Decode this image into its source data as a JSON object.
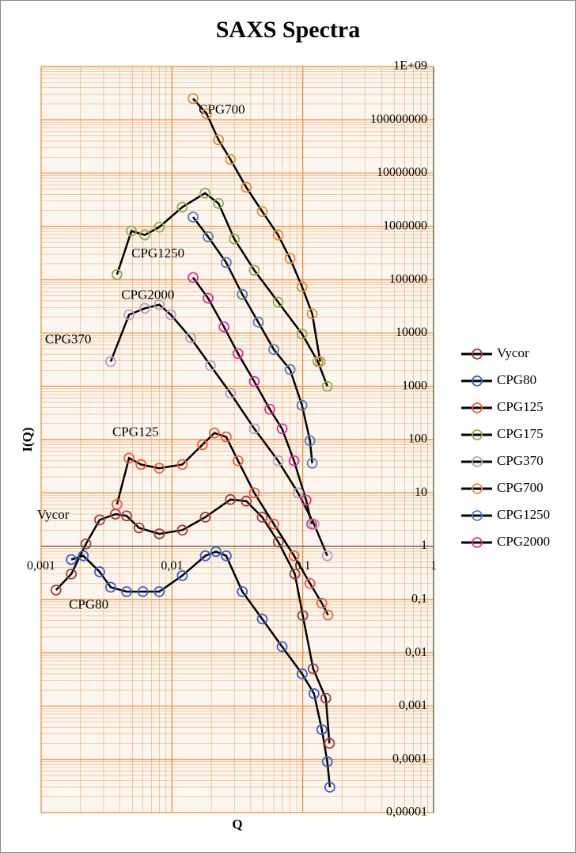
{
  "chart_data": {
    "type": "scatter-line",
    "title": "SAXS Spectra",
    "x_label": "Q",
    "y_label": "I(Q)",
    "xscale": "log",
    "yscale": "log",
    "xlim": [
      0.001,
      1
    ],
    "ylim": [
      1e-05,
      1000000000
    ],
    "xticks": [
      {
        "value": 0.001,
        "label": "0,001"
      },
      {
        "value": 0.01,
        "label": "0,01"
      },
      {
        "value": 0.1,
        "label": "0,1"
      },
      1
    ],
    "yticks": [
      {
        "value": 1000000000,
        "label": "1E+09"
      },
      100000000,
      10000000,
      1000000,
      100000,
      10000,
      1000,
      100,
      10,
      1,
      {
        "value": 0.1,
        "label": "0,1"
      },
      {
        "value": 0.01,
        "label": "0,01"
      },
      {
        "value": 0.001,
        "label": "0,001"
      },
      {
        "value": 0.0001,
        "label": "0,0001"
      },
      {
        "value": 1e-05,
        "label": "0,00001"
      }
    ],
    "grid": true,
    "minor_grid": true,
    "grid_color": "#e38a2e",
    "line_color": "#000000",
    "legend": "right",
    "series": [
      {
        "name": "Vycor",
        "color": "#a0403c",
        "x": [
          0.0013,
          0.0017,
          0.0022,
          0.0028,
          0.0037,
          0.0045,
          0.0056,
          0.008,
          0.012,
          0.018,
          0.028,
          0.037,
          0.049,
          0.065,
          0.087,
          0.1,
          0.12,
          0.15,
          0.16
        ],
        "values": [
          0.15,
          0.3,
          1.1,
          3.1,
          4,
          3.7,
          2.2,
          1.7,
          2,
          3.5,
          7.5,
          7,
          3.5,
          1.2,
          0.3,
          0.05,
          0.005,
          0.0014,
          0.0002
        ]
      },
      {
        "name": "CPG80",
        "color": "#3a5fcf",
        "x": [
          0.0017,
          0.0021,
          0.0028,
          0.0034,
          0.0045,
          0.006,
          0.008,
          0.012,
          0.018,
          0.0217,
          0.026,
          0.0345,
          0.049,
          0.0695,
          0.099,
          0.122,
          0.14,
          0.154,
          0.161
        ],
        "values": [
          0.56,
          0.66,
          0.33,
          0.17,
          0.14,
          0.14,
          0.14,
          0.28,
          0.66,
          0.79,
          0.66,
          0.14,
          0.043,
          0.013,
          0.004,
          0.0017,
          0.00036,
          9e-05,
          3e-05
        ]
      },
      {
        "name": "CPG125",
        "color": "#f0603a",
        "x": [
          0.0038,
          0.0047,
          0.0058,
          0.008,
          0.012,
          0.0171,
          0.0211,
          0.026,
          0.032,
          0.0426,
          0.06,
          0.0857,
          0.1135,
          0.14,
          0.156
        ],
        "values": [
          6.1,
          45,
          34,
          29,
          34,
          80,
          133,
          112,
          40,
          10,
          2.6,
          0.66,
          0.2,
          0.085,
          0.051
        ]
      },
      {
        "name": "CPG175",
        "color": "#8fb050",
        "x": [
          0.0038,
          0.0049,
          0.0062,
          0.008,
          0.012,
          0.0179,
          0.0227,
          0.03,
          0.0426,
          0.0648,
          0.0987,
          0.1305,
          0.154
        ],
        "values": [
          125000,
          820000,
          690000,
          970000,
          2300000,
          4200000,
          2700000,
          580000,
          150000,
          38000,
          9600,
          2900,
          1000
        ]
      },
      {
        "name": "CPG370",
        "color": "#b3a2c7",
        "x": [
          0.0034,
          0.0047,
          0.0062,
          0.008,
          0.0098,
          0.0139,
          0.0197,
          0.028,
          0.0426,
          0.0648,
          0.092,
          0.122,
          0.154
        ],
        "values": [
          2900,
          22000,
          29000,
          34000,
          22000,
          8100,
          2450,
          740,
          160,
          40,
          10,
          2.6,
          0.66
        ]
      },
      {
        "name": "CPG700",
        "color": "#e0903a",
        "x": [
          0.0145,
          0.0184,
          0.0227,
          0.028,
          0.037,
          0.049,
          0.0648,
          0.08,
          0.0987,
          0.118,
          0.136
        ],
        "values": [
          250000000,
          130000000,
          42000000,
          18000000,
          5400000,
          1900000,
          690000,
          250000,
          74000,
          23000,
          2900
        ]
      },
      {
        "name": "CPG1250",
        "color": "#4f81bd",
        "x": [
          0.0145,
          0.0189,
          0.026,
          0.0345,
          0.0457,
          0.06,
          0.08,
          0.0987,
          0.1135,
          0.118
        ],
        "values": [
          1500000,
          640000,
          210000,
          53000,
          16000,
          4900,
          2060,
          440,
          95,
          36
        ]
      },
      {
        "name": "CPG2000",
        "color": "#e0309a",
        "x": [
          0.0145,
          0.0189,
          0.025,
          0.032,
          0.0426,
          0.056,
          0.0695,
          0.0857,
          0.106,
          0.117
        ],
        "values": [
          110000,
          45000,
          13000,
          4100,
          1230,
          370,
          160,
          40,
          7.3,
          2.6
        ]
      }
    ],
    "annotations": [
      {
        "text": "CPG700",
        "x": 0.016,
        "y": 150000000
      },
      {
        "text": "CPG1250",
        "x": 0.0049,
        "y": 300000
      },
      {
        "text": "CPG2000",
        "x": 0.0041,
        "y": 50000
      },
      {
        "text": "CPG370",
        "x": 0.00107,
        "y": 7300
      },
      {
        "text": "CPG125",
        "x": 0.0035,
        "y": 133
      },
      {
        "text": "Vycor",
        "x": 0.00093,
        "y": 3.7
      },
      {
        "text": "CPG80",
        "x": 0.00163,
        "y": 0.077
      }
    ]
  }
}
